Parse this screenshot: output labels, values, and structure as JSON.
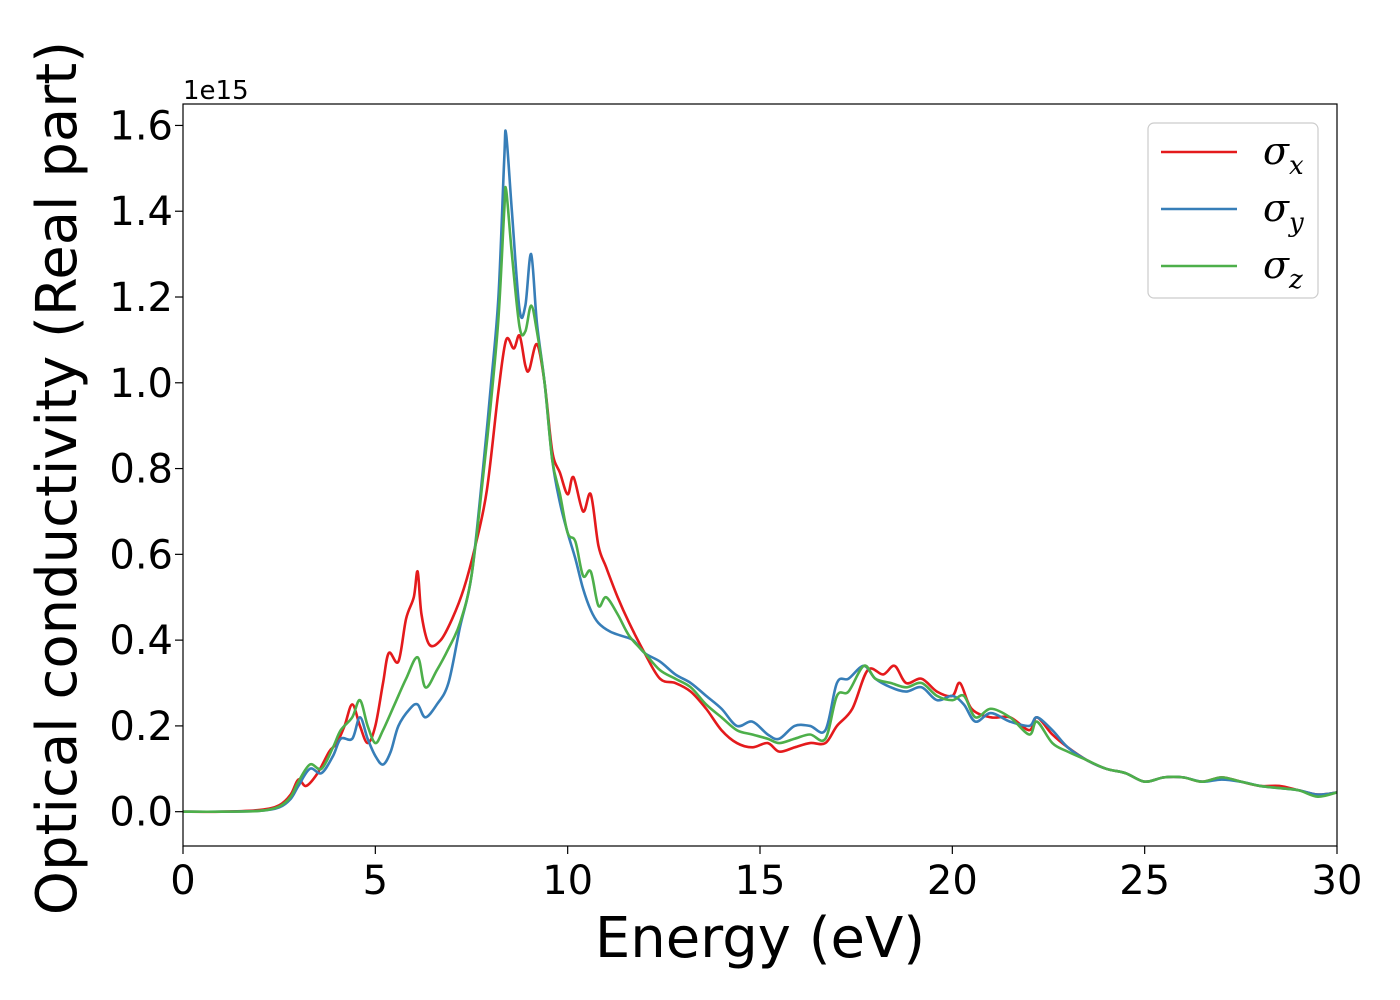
{
  "chart_data": {
    "type": "line",
    "xlabel": "Energy (eV)",
    "ylabel": "Optical conductivity (Real part)",
    "y_offset_label": "1e15",
    "xlim": [
      0,
      30
    ],
    "ylim": [
      -0.08,
      1.65
    ],
    "x_ticks": [
      0,
      5,
      10,
      15,
      20,
      25,
      30
    ],
    "x_tick_labels": [
      "0",
      "5",
      "10",
      "15",
      "20",
      "25",
      "30"
    ],
    "y_ticks": [
      0.0,
      0.2,
      0.4,
      0.6,
      0.8,
      1.0,
      1.2,
      1.4,
      1.6
    ],
    "y_tick_labels": [
      "0.0",
      "0.2",
      "0.4",
      "0.6",
      "0.8",
      "1.0",
      "1.2",
      "1.4",
      "1.6"
    ],
    "grid": false,
    "legend_position": "top-right",
    "series": [
      {
        "name": "σx",
        "name_base": "σ",
        "name_sub": "x",
        "color": "#e41a1c",
        "points": [
          [
            0,
            0
          ],
          [
            1,
            0
          ],
          [
            2,
            0.004
          ],
          [
            2.5,
            0.015
          ],
          [
            2.8,
            0.04
          ],
          [
            3.0,
            0.075
          ],
          [
            3.2,
            0.06
          ],
          [
            3.5,
            0.09
          ],
          [
            3.8,
            0.14
          ],
          [
            4.0,
            0.16
          ],
          [
            4.2,
            0.2
          ],
          [
            4.4,
            0.25
          ],
          [
            4.6,
            0.2
          ],
          [
            4.8,
            0.16
          ],
          [
            5.0,
            0.2
          ],
          [
            5.2,
            0.3
          ],
          [
            5.35,
            0.37
          ],
          [
            5.6,
            0.35
          ],
          [
            5.8,
            0.45
          ],
          [
            6.0,
            0.5
          ],
          [
            6.1,
            0.56
          ],
          [
            6.2,
            0.46
          ],
          [
            6.4,
            0.39
          ],
          [
            6.7,
            0.4
          ],
          [
            7.0,
            0.45
          ],
          [
            7.3,
            0.52
          ],
          [
            7.6,
            0.62
          ],
          [
            7.9,
            0.75
          ],
          [
            8.2,
            0.98
          ],
          [
            8.4,
            1.1
          ],
          [
            8.6,
            1.08
          ],
          [
            8.75,
            1.11
          ],
          [
            8.9,
            1.04
          ],
          [
            9.0,
            1.03
          ],
          [
            9.2,
            1.09
          ],
          [
            9.4,
            1.0
          ],
          [
            9.6,
            0.84
          ],
          [
            9.8,
            0.79
          ],
          [
            10.0,
            0.74
          ],
          [
            10.15,
            0.78
          ],
          [
            10.4,
            0.7
          ],
          [
            10.6,
            0.74
          ],
          [
            10.8,
            0.62
          ],
          [
            11.0,
            0.57
          ],
          [
            11.3,
            0.5
          ],
          [
            11.6,
            0.44
          ],
          [
            12.0,
            0.37
          ],
          [
            12.4,
            0.31
          ],
          [
            12.8,
            0.3
          ],
          [
            13.2,
            0.28
          ],
          [
            13.6,
            0.24
          ],
          [
            14.0,
            0.19
          ],
          [
            14.4,
            0.16
          ],
          [
            14.8,
            0.15
          ],
          [
            15.2,
            0.16
          ],
          [
            15.5,
            0.14
          ],
          [
            15.9,
            0.15
          ],
          [
            16.3,
            0.16
          ],
          [
            16.7,
            0.16
          ],
          [
            17.0,
            0.2
          ],
          [
            17.4,
            0.24
          ],
          [
            17.8,
            0.33
          ],
          [
            18.2,
            0.32
          ],
          [
            18.5,
            0.34
          ],
          [
            18.8,
            0.3
          ],
          [
            19.2,
            0.31
          ],
          [
            19.6,
            0.28
          ],
          [
            20.0,
            0.27
          ],
          [
            20.2,
            0.3
          ],
          [
            20.5,
            0.24
          ],
          [
            21.0,
            0.22
          ],
          [
            21.5,
            0.22
          ],
          [
            22.0,
            0.19
          ],
          [
            22.2,
            0.22
          ],
          [
            22.6,
            0.18
          ],
          [
            23.0,
            0.15
          ],
          [
            23.5,
            0.12
          ],
          [
            24.0,
            0.1
          ],
          [
            24.5,
            0.09
          ],
          [
            25.0,
            0.07
          ],
          [
            25.5,
            0.08
          ],
          [
            26.0,
            0.08
          ],
          [
            26.5,
            0.07
          ],
          [
            27.0,
            0.08
          ],
          [
            27.5,
            0.07
          ],
          [
            28.0,
            0.06
          ],
          [
            28.5,
            0.06
          ],
          [
            29.0,
            0.05
          ],
          [
            29.5,
            0.04
          ],
          [
            30.0,
            0.045
          ]
        ]
      },
      {
        "name": "σy",
        "name_base": "σ",
        "name_sub": "y",
        "color": "#377eb8",
        "points": [
          [
            0,
            0
          ],
          [
            1,
            0
          ],
          [
            2,
            0.002
          ],
          [
            2.5,
            0.01
          ],
          [
            2.8,
            0.03
          ],
          [
            3.0,
            0.06
          ],
          [
            3.3,
            0.1
          ],
          [
            3.6,
            0.09
          ],
          [
            3.9,
            0.13
          ],
          [
            4.1,
            0.17
          ],
          [
            4.4,
            0.17
          ],
          [
            4.6,
            0.22
          ],
          [
            4.8,
            0.17
          ],
          [
            5.0,
            0.13
          ],
          [
            5.2,
            0.11
          ],
          [
            5.4,
            0.14
          ],
          [
            5.6,
            0.2
          ],
          [
            5.9,
            0.24
          ],
          [
            6.1,
            0.25
          ],
          [
            6.3,
            0.22
          ],
          [
            6.6,
            0.25
          ],
          [
            6.9,
            0.3
          ],
          [
            7.2,
            0.43
          ],
          [
            7.5,
            0.55
          ],
          [
            7.8,
            0.8
          ],
          [
            8.0,
            0.99
          ],
          [
            8.2,
            1.2
          ],
          [
            8.35,
            1.52
          ],
          [
            8.4,
            1.58
          ],
          [
            8.55,
            1.4
          ],
          [
            8.75,
            1.17
          ],
          [
            8.9,
            1.18
          ],
          [
            9.05,
            1.3
          ],
          [
            9.2,
            1.14
          ],
          [
            9.4,
            1.0
          ],
          [
            9.6,
            0.82
          ],
          [
            9.8,
            0.72
          ],
          [
            10.0,
            0.65
          ],
          [
            10.2,
            0.59
          ],
          [
            10.4,
            0.52
          ],
          [
            10.6,
            0.47
          ],
          [
            10.8,
            0.44
          ],
          [
            11.1,
            0.42
          ],
          [
            11.4,
            0.41
          ],
          [
            11.7,
            0.4
          ],
          [
            12.0,
            0.37
          ],
          [
            12.4,
            0.35
          ],
          [
            12.8,
            0.32
          ],
          [
            13.2,
            0.3
          ],
          [
            13.6,
            0.27
          ],
          [
            14.0,
            0.24
          ],
          [
            14.4,
            0.2
          ],
          [
            14.8,
            0.21
          ],
          [
            15.2,
            0.18
          ],
          [
            15.5,
            0.17
          ],
          [
            15.9,
            0.2
          ],
          [
            16.3,
            0.2
          ],
          [
            16.7,
            0.19
          ],
          [
            17.0,
            0.3
          ],
          [
            17.3,
            0.31
          ],
          [
            17.7,
            0.34
          ],
          [
            18.0,
            0.31
          ],
          [
            18.4,
            0.29
          ],
          [
            18.8,
            0.28
          ],
          [
            19.2,
            0.29
          ],
          [
            19.6,
            0.26
          ],
          [
            20.0,
            0.27
          ],
          [
            20.3,
            0.25
          ],
          [
            20.6,
            0.21
          ],
          [
            21.0,
            0.23
          ],
          [
            21.5,
            0.21
          ],
          [
            22.0,
            0.2
          ],
          [
            22.2,
            0.22
          ],
          [
            22.6,
            0.19
          ],
          [
            23.0,
            0.15
          ],
          [
            23.5,
            0.12
          ],
          [
            24.0,
            0.1
          ],
          [
            24.5,
            0.09
          ],
          [
            25.0,
            0.07
          ],
          [
            25.5,
            0.08
          ],
          [
            26.0,
            0.08
          ],
          [
            26.5,
            0.07
          ],
          [
            27.0,
            0.075
          ],
          [
            27.5,
            0.07
          ],
          [
            28.0,
            0.06
          ],
          [
            28.5,
            0.055
          ],
          [
            29.0,
            0.05
          ],
          [
            29.5,
            0.04
          ],
          [
            30.0,
            0.045
          ]
        ]
      },
      {
        "name": "σz",
        "name_base": "σ",
        "name_sub": "z",
        "color": "#4daf4a",
        "points": [
          [
            0,
            0
          ],
          [
            1,
            0
          ],
          [
            2,
            0.002
          ],
          [
            2.5,
            0.012
          ],
          [
            2.8,
            0.035
          ],
          [
            3.0,
            0.07
          ],
          [
            3.3,
            0.11
          ],
          [
            3.6,
            0.1
          ],
          [
            3.9,
            0.15
          ],
          [
            4.1,
            0.19
          ],
          [
            4.4,
            0.22
          ],
          [
            4.6,
            0.26
          ],
          [
            4.8,
            0.2
          ],
          [
            5.0,
            0.16
          ],
          [
            5.2,
            0.19
          ],
          [
            5.5,
            0.25
          ],
          [
            5.8,
            0.31
          ],
          [
            6.1,
            0.36
          ],
          [
            6.3,
            0.29
          ],
          [
            6.6,
            0.33
          ],
          [
            6.9,
            0.38
          ],
          [
            7.2,
            0.44
          ],
          [
            7.5,
            0.55
          ],
          [
            7.8,
            0.78
          ],
          [
            8.0,
            0.95
          ],
          [
            8.2,
            1.15
          ],
          [
            8.35,
            1.4
          ],
          [
            8.4,
            1.45
          ],
          [
            8.55,
            1.3
          ],
          [
            8.75,
            1.13
          ],
          [
            8.9,
            1.12
          ],
          [
            9.05,
            1.18
          ],
          [
            9.2,
            1.12
          ],
          [
            9.4,
            1.0
          ],
          [
            9.6,
            0.82
          ],
          [
            9.8,
            0.74
          ],
          [
            10.0,
            0.65
          ],
          [
            10.2,
            0.63
          ],
          [
            10.4,
            0.55
          ],
          [
            10.6,
            0.56
          ],
          [
            10.8,
            0.48
          ],
          [
            11.0,
            0.5
          ],
          [
            11.3,
            0.46
          ],
          [
            11.6,
            0.41
          ],
          [
            12.0,
            0.37
          ],
          [
            12.4,
            0.33
          ],
          [
            12.8,
            0.31
          ],
          [
            13.2,
            0.29
          ],
          [
            13.6,
            0.25
          ],
          [
            14.0,
            0.22
          ],
          [
            14.4,
            0.19
          ],
          [
            14.8,
            0.18
          ],
          [
            15.2,
            0.17
          ],
          [
            15.5,
            0.16
          ],
          [
            15.9,
            0.17
          ],
          [
            16.3,
            0.18
          ],
          [
            16.7,
            0.17
          ],
          [
            17.0,
            0.27
          ],
          [
            17.3,
            0.28
          ],
          [
            17.7,
            0.34
          ],
          [
            18.0,
            0.31
          ],
          [
            18.4,
            0.3
          ],
          [
            18.8,
            0.29
          ],
          [
            19.2,
            0.3
          ],
          [
            19.6,
            0.27
          ],
          [
            20.0,
            0.26
          ],
          [
            20.3,
            0.27
          ],
          [
            20.6,
            0.22
          ],
          [
            21.0,
            0.24
          ],
          [
            21.5,
            0.22
          ],
          [
            22.0,
            0.18
          ],
          [
            22.2,
            0.21
          ],
          [
            22.6,
            0.16
          ],
          [
            23.0,
            0.14
          ],
          [
            23.5,
            0.12
          ],
          [
            24.0,
            0.1
          ],
          [
            24.5,
            0.09
          ],
          [
            25.0,
            0.07
          ],
          [
            25.5,
            0.08
          ],
          [
            26.0,
            0.08
          ],
          [
            26.5,
            0.07
          ],
          [
            27.0,
            0.08
          ],
          [
            27.5,
            0.07
          ],
          [
            28.0,
            0.06
          ],
          [
            28.5,
            0.055
          ],
          [
            29.0,
            0.05
          ],
          [
            29.5,
            0.035
          ],
          [
            30.0,
            0.045
          ]
        ]
      }
    ]
  }
}
